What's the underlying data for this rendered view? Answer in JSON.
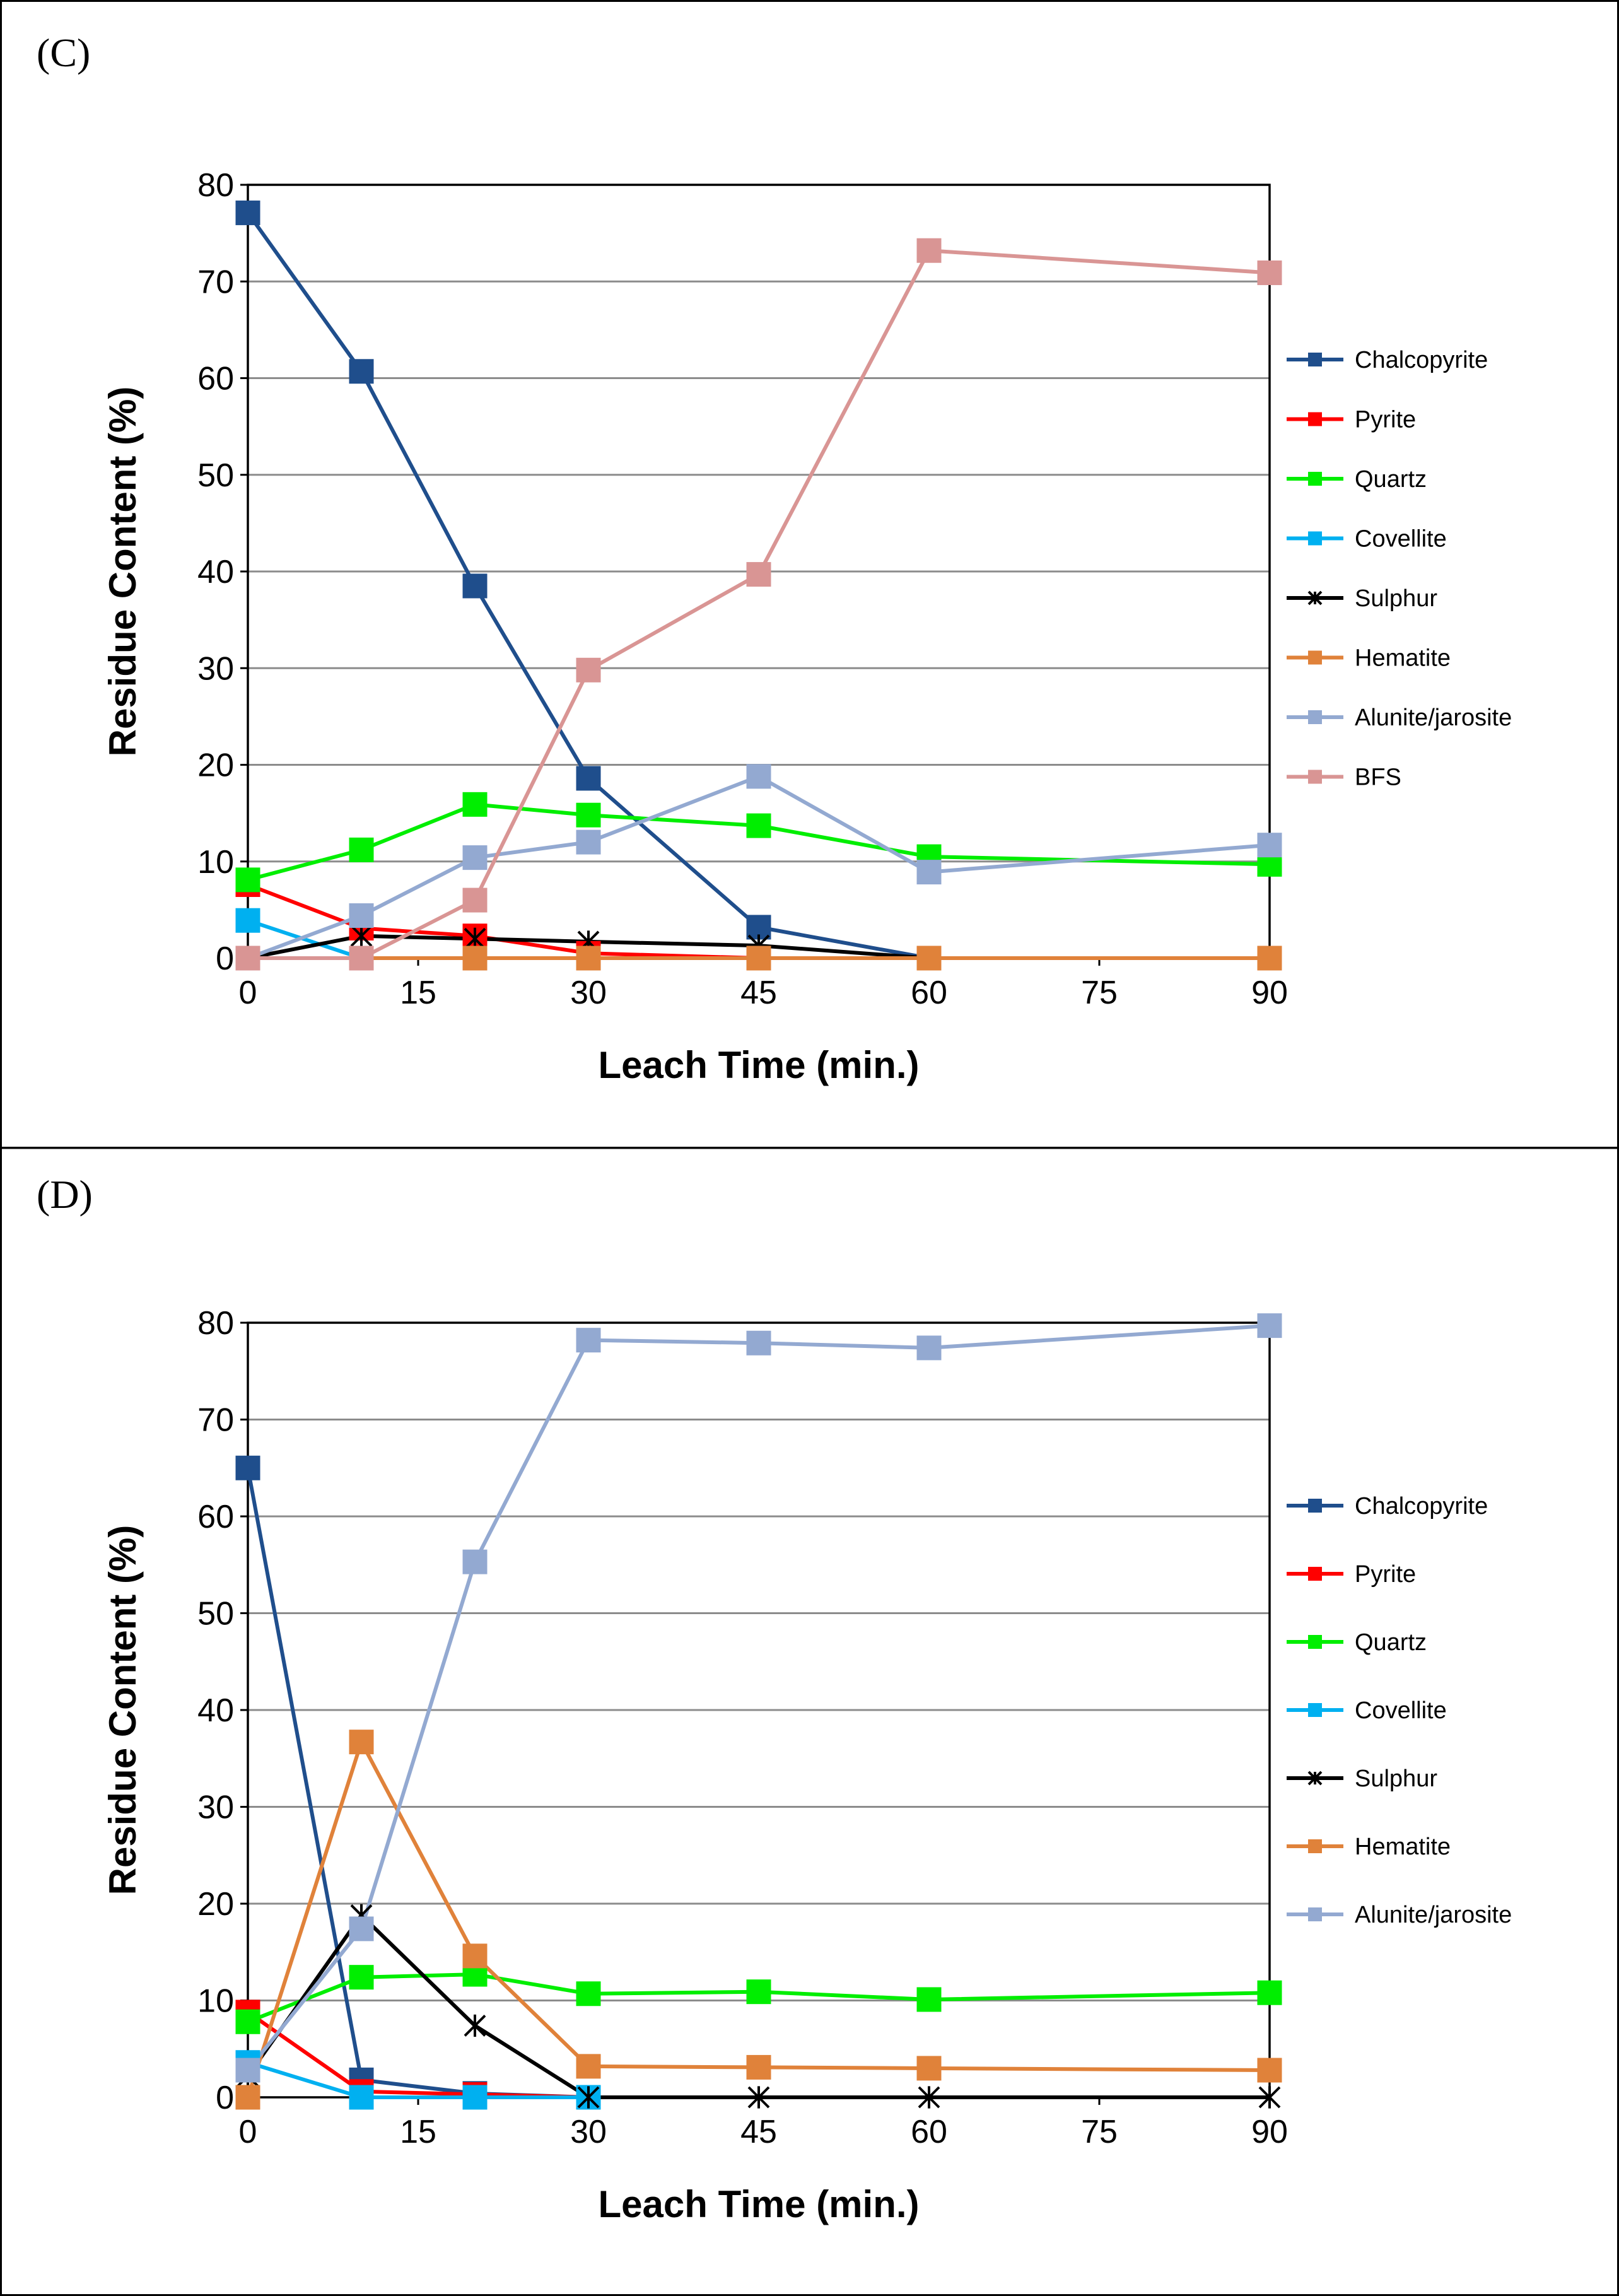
{
  "chart_data": [
    {
      "panel_label": "(C)",
      "type": "line",
      "xlabel": "Leach Time (min.)",
      "ylabel": "Residue Content (%)",
      "x_ticks": [
        0,
        15,
        30,
        45,
        60,
        75,
        90
      ],
      "y_ticks": [
        0,
        10,
        20,
        30,
        40,
        50,
        60,
        70,
        80
      ],
      "xlim": [
        0,
        90
      ],
      "ylim": [
        0,
        80
      ],
      "grid": "horizontal",
      "legend_position": "right",
      "series": [
        {
          "name": "Chalcopyrite",
          "color": "#1f4e8c",
          "marker": "square",
          "x": [
            0,
            10,
            20,
            30,
            45,
            60
          ],
          "y": [
            77.1,
            60.7,
            38.5,
            18.6,
            3.2,
            0
          ]
        },
        {
          "name": "Pyrite",
          "color": "#ff0000",
          "marker": "square",
          "x": [
            0,
            10,
            20,
            30,
            45
          ],
          "y": [
            7.6,
            3.1,
            2.3,
            0.5,
            0
          ]
        },
        {
          "name": "Quartz",
          "color": "#00ee00",
          "marker": "square",
          "x": [
            0,
            10,
            20,
            30,
            45,
            60,
            90
          ],
          "y": [
            8.1,
            11.2,
            15.9,
            14.8,
            13.7,
            10.5,
            9.7
          ]
        },
        {
          "name": "Covellite",
          "color": "#00b0f0",
          "marker": "square",
          "x": [
            0,
            10
          ],
          "y": [
            3.9,
            0
          ]
        },
        {
          "name": "Sulphur",
          "color": "#000000",
          "marker": "star",
          "x": [
            0,
            10,
            20,
            30,
            45,
            60
          ],
          "y": [
            0,
            2.3,
            2.0,
            1.7,
            1.3,
            0
          ]
        },
        {
          "name": "Hematite",
          "color": "#e0823a",
          "marker": "square",
          "x": [
            0,
            10,
            20,
            30,
            45,
            60,
            90
          ],
          "y": [
            0,
            0,
            0,
            0,
            0,
            0,
            0
          ]
        },
        {
          "name": "Alunite/jarosite",
          "color": "#93a9d1",
          "marker": "square",
          "x": [
            0,
            10,
            20,
            30,
            45,
            60,
            90
          ],
          "y": [
            0,
            4.4,
            10.4,
            12.0,
            18.8,
            8.9,
            11.7
          ]
        },
        {
          "name": "BFS",
          "color": "#d99594",
          "marker": "square",
          "x": [
            0,
            10,
            20,
            30,
            45,
            60,
            90
          ],
          "y": [
            0,
            0,
            6.0,
            29.8,
            39.7,
            73.2,
            70.9
          ]
        }
      ]
    },
    {
      "panel_label": "(D)",
      "type": "line",
      "xlabel": "Leach Time (min.)",
      "ylabel": "Residue Content (%)",
      "x_ticks": [
        0,
        15,
        30,
        45,
        60,
        75,
        90
      ],
      "y_ticks": [
        0,
        10,
        20,
        30,
        40,
        50,
        60,
        70,
        80
      ],
      "xlim": [
        0,
        90
      ],
      "ylim": [
        0,
        80
      ],
      "grid": "horizontal",
      "legend_position": "right",
      "series": [
        {
          "name": "Chalcopyrite",
          "color": "#1f4e8c",
          "marker": "square",
          "x": [
            0,
            10,
            20,
            30
          ],
          "y": [
            65.0,
            1.8,
            0.4,
            0
          ]
        },
        {
          "name": "Pyrite",
          "color": "#ff0000",
          "marker": "square",
          "x": [
            0,
            10,
            20,
            30
          ],
          "y": [
            8.8,
            0.6,
            0.3,
            0
          ]
        },
        {
          "name": "Quartz",
          "color": "#00ee00",
          "marker": "square",
          "x": [
            0,
            10,
            20,
            30,
            45,
            60,
            90
          ],
          "y": [
            7.8,
            12.4,
            12.7,
            10.7,
            10.9,
            10.1,
            10.8
          ]
        },
        {
          "name": "Covellite",
          "color": "#00b0f0",
          "marker": "square",
          "x": [
            0,
            10,
            20,
            30
          ],
          "y": [
            3.6,
            0,
            0,
            0
          ]
        },
        {
          "name": "Sulphur",
          "color": "#000000",
          "marker": "star",
          "x": [
            0,
            10,
            20,
            30,
            45,
            60,
            90
          ],
          "y": [
            2.2,
            18.8,
            7.4,
            0,
            0,
            0,
            0
          ]
        },
        {
          "name": "Hematite",
          "color": "#e0823a",
          "marker": "square",
          "x": [
            0,
            10,
            20,
            30,
            45,
            60,
            90
          ],
          "y": [
            0,
            36.7,
            14.6,
            3.2,
            3.1,
            3.0,
            2.8
          ]
        },
        {
          "name": "Alunite/jarosite",
          "color": "#93a9d1",
          "marker": "square",
          "x": [
            0,
            10,
            20,
            30,
            45,
            60,
            90
          ],
          "y": [
            2.8,
            17.4,
            55.3,
            78.2,
            77.9,
            77.4,
            79.7
          ]
        }
      ]
    }
  ]
}
